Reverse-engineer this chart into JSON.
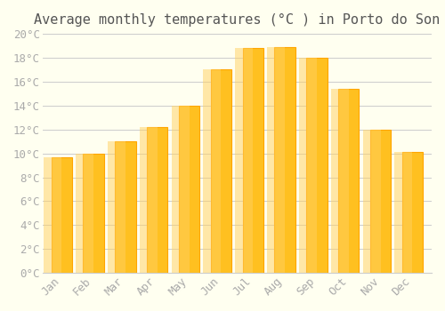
{
  "title": "Average monthly temperatures (°C ) in Porto do Son",
  "months": [
    "Jan",
    "Feb",
    "Mar",
    "Apr",
    "May",
    "Jun",
    "Jul",
    "Aug",
    "Sep",
    "Oct",
    "Nov",
    "Dec"
  ],
  "values": [
    9.7,
    10.0,
    11.0,
    12.2,
    14.0,
    17.0,
    18.8,
    18.9,
    18.0,
    15.4,
    12.0,
    10.1
  ],
  "bar_color_face": "#FFC020",
  "bar_color_edge": "#FFA500",
  "background_color": "#FFFFF0",
  "grid_color": "#CCCCCC",
  "ylim": [
    0,
    20
  ],
  "yticks": [
    0,
    2,
    4,
    6,
    8,
    10,
    12,
    14,
    16,
    18,
    20
  ],
  "ytick_labels": [
    "0°C",
    "2°C",
    "4°C",
    "6°C",
    "8°C",
    "10°C",
    "12°C",
    "14°C",
    "16°C",
    "18°C",
    "20°C"
  ],
  "title_fontsize": 11,
  "tick_fontsize": 9,
  "tick_font_color": "#AAAAAA",
  "font_family": "monospace"
}
